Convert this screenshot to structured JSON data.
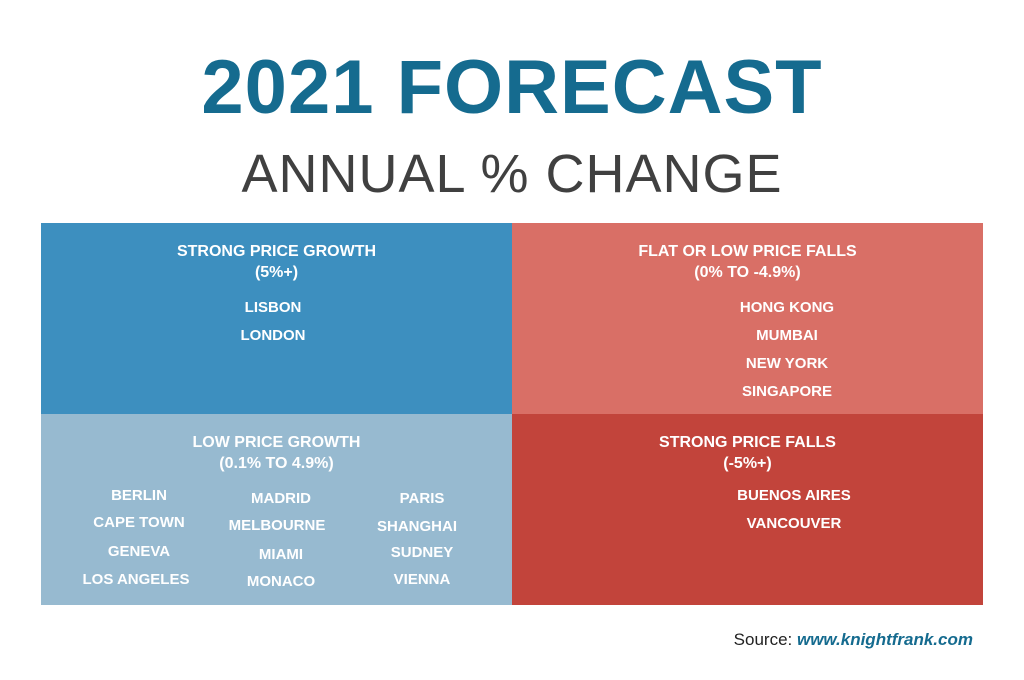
{
  "title": "2021 FORECAST",
  "subtitle": "ANNUAL % CHANGE",
  "quadrants": {
    "strong_growth": {
      "heading": "STRONG PRICE GROWTH",
      "range": "(5%+)",
      "color": "#3d8fbf",
      "cities": [
        "LISBON",
        "LONDON"
      ]
    },
    "flat_falls": {
      "heading": "FLAT OR LOW PRICE FALLS",
      "range": "(0% TO -4.9%)",
      "color": "#d96f66",
      "cities": [
        "HONG KONG",
        "MUMBAI",
        "NEW YORK",
        "SINGAPORE"
      ]
    },
    "low_growth": {
      "heading": "LOW PRICE GROWTH",
      "range": "(0.1% TO 4.9%)",
      "color": "#97bad0",
      "cities": [
        "BERLIN",
        "CAPE TOWN",
        "GENEVA",
        "LOS ANGELES",
        "MADRID",
        "MELBOURNE",
        "MIAMI",
        "MONACO",
        "PARIS",
        "SHANGHAI",
        "SUDNEY",
        "VIENNA"
      ]
    },
    "strong_falls": {
      "heading": "STRONG PRICE FALLS",
      "range": "(-5%+)",
      "color": "#c2443b",
      "cities": [
        "BUENOS AIRES",
        "VANCOUVER"
      ]
    }
  },
  "source": {
    "label": "Source:",
    "url": "www.knightfrank.com"
  }
}
